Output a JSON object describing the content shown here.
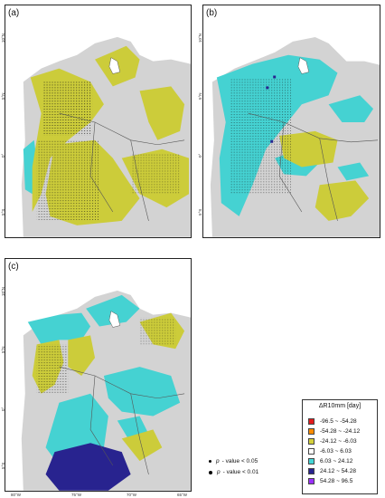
{
  "panels": [
    {
      "label": "(a)",
      "scheme": "a"
    },
    {
      "label": "(b)",
      "scheme": "b"
    },
    {
      "label": "(c)",
      "scheme": "c"
    }
  ],
  "axes": {
    "lat_ticks": [
      "10°N",
      "5°N",
      "0°",
      "5°S"
    ],
    "lon_ticks": [
      "80°W",
      "75°W",
      "70°W",
      "65°W"
    ]
  },
  "legend": {
    "title": "ΔR10mm [day]",
    "items": [
      {
        "label": "-96.5 ~ -54.28",
        "color": "#e31a1c"
      },
      {
        "label": "-54.28 ~ -24.12",
        "color": "#ff8c00"
      },
      {
        "label": "-24.12 ~ -6.03",
        "color": "#d4d03a"
      },
      {
        "label": "-6.03 ~ 6.03",
        "color": "#ffffff"
      },
      {
        "label": "6.03 ~ 24.12",
        "color": "#44d6d6"
      },
      {
        "label": "24.12 ~ 54.28",
        "color": "#28238f"
      },
      {
        "label": "54.28 ~ 96.5",
        "color": "#9b30ff"
      }
    ]
  },
  "significance": [
    {
      "p": "p",
      "text": "- value < 0.05",
      "size": "small"
    },
    {
      "p": "p",
      "text": "- value < 0.01",
      "size": "large"
    }
  ]
}
